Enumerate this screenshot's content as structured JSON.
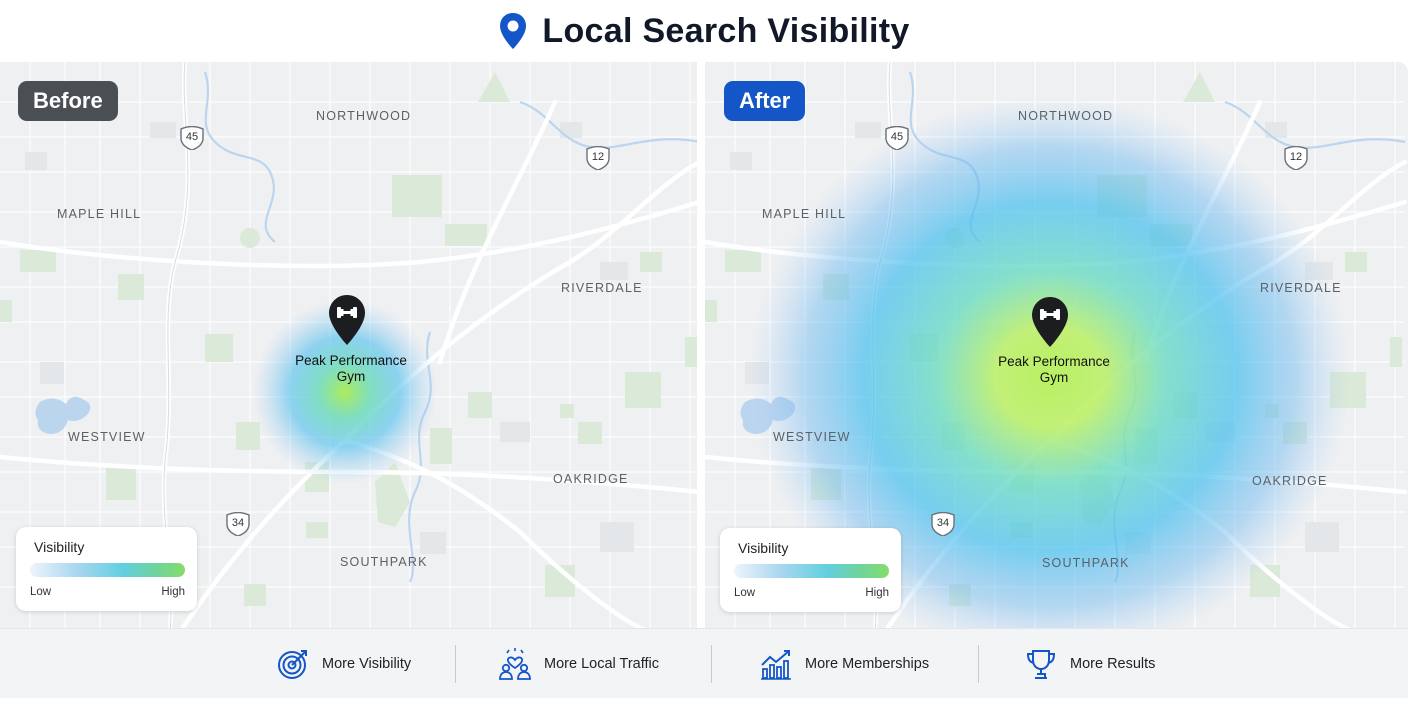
{
  "header": {
    "title": "Local Search Visibility",
    "icon": "location-pin-icon",
    "accent": "#1456c8"
  },
  "panels": {
    "before": {
      "badge": "Before",
      "badge_color": "#4a4f54",
      "places": {
        "northwood": "NORTHWOOD",
        "maple_hill": "MAPLE HILL",
        "riverdale": "RIVERDALE",
        "westview": "WESTVIEW",
        "oakridge": "OAKRIDGE",
        "southpark": "SOUTHPARK"
      },
      "highways": {
        "h45": "45",
        "h12": "12",
        "h34": "34"
      },
      "business": {
        "line1": "Peak Performance",
        "line2": "Gym"
      },
      "legend": {
        "title": "Visibility",
        "low": "Low",
        "high": "High"
      }
    },
    "after": {
      "badge": "After",
      "badge_color": "#1456c8",
      "places": {
        "northwood": "NORTHWOOD",
        "maple_hill": "MAPLE HILL",
        "riverdale": "RIVERDALE",
        "westview": "WESTVIEW",
        "oakridge": "OAKRIDGE",
        "southpark": "SOUTHPARK"
      },
      "highways": {
        "h45": "45",
        "h12": "12",
        "h34": "34"
      },
      "business": {
        "line1": "Peak Performance",
        "line2": "Gym"
      },
      "legend": {
        "title": "Visibility",
        "low": "Low",
        "high": "High"
      }
    }
  },
  "benefits": [
    {
      "label": "More Visibility",
      "icon": "target-icon"
    },
    {
      "label": "More Local Traffic",
      "icon": "people-heart-icon"
    },
    {
      "label": "More Memberships",
      "icon": "growth-chart-icon"
    },
    {
      "label": "More Results",
      "icon": "trophy-icon"
    }
  ]
}
